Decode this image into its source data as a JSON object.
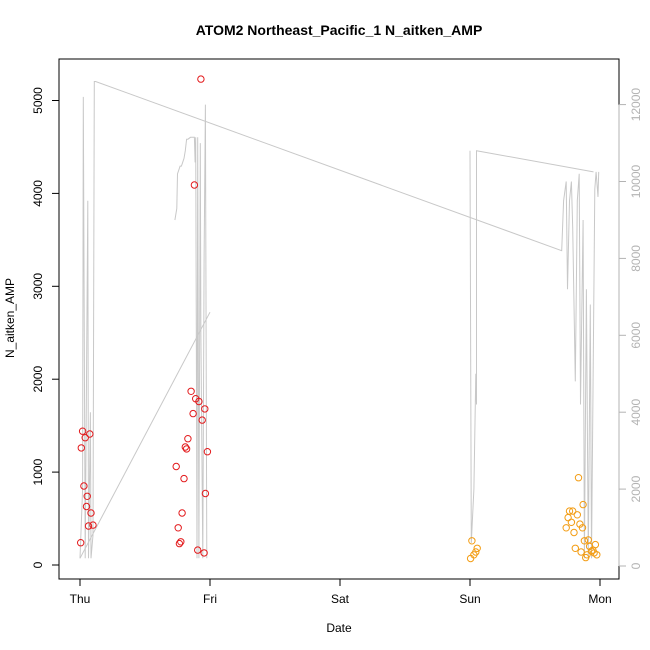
{
  "chart_data": {
    "type": "scatter",
    "title": "ATOM2 Northeast_Pacific_1 N_aitken_AMP",
    "xlabel": "Date",
    "ylabel": "N_aitken_AMP",
    "x_ticks": [
      "Thu",
      "Fri",
      "Sat",
      "Sun",
      "Mon"
    ],
    "x_range_days": [
      0,
      4
    ],
    "y_left": {
      "range": [
        0,
        5400
      ],
      "ticks": [
        0,
        1000,
        2000,
        3000,
        4000,
        5000
      ]
    },
    "y_right": {
      "range": [
        0,
        13000
      ],
      "ticks": [
        0,
        2000,
        4000,
        6000,
        8000,
        10000,
        12000
      ],
      "color": "#b3b3b3"
    },
    "grid": false,
    "colors": {
      "red": "#e31a1c",
      "orange": "#f39c12",
      "line": "#c8c8c8"
    },
    "series": [
      {
        "style": "points",
        "color": "red",
        "points": [
          [
            0.005,
            240
          ],
          [
            0.01,
            1260
          ],
          [
            0.02,
            1440
          ],
          [
            0.03,
            850
          ],
          [
            0.04,
            1370
          ],
          [
            0.05,
            630
          ],
          [
            0.055,
            740
          ],
          [
            0.065,
            420
          ],
          [
            0.075,
            1410
          ],
          [
            0.085,
            560
          ],
          [
            0.1,
            430
          ],
          [
            0.74,
            1060
          ],
          [
            0.755,
            400
          ],
          [
            0.765,
            230
          ],
          [
            0.775,
            250
          ],
          [
            0.785,
            560
          ],
          [
            0.8,
            930
          ],
          [
            0.81,
            1270
          ],
          [
            0.82,
            1250
          ],
          [
            0.83,
            1360
          ],
          [
            0.855,
            1870
          ],
          [
            0.87,
            1630
          ],
          [
            0.88,
            4090
          ],
          [
            0.89,
            1790
          ],
          [
            0.905,
            160
          ],
          [
            0.915,
            1760
          ],
          [
            0.93,
            5230
          ],
          [
            0.94,
            1560
          ],
          [
            0.955,
            130
          ],
          [
            0.96,
            1680
          ],
          [
            0.965,
            770
          ],
          [
            0.98,
            1220
          ]
        ]
      },
      {
        "style": "points",
        "color": "orange",
        "points": [
          [
            3.005,
            70
          ],
          [
            3.015,
            260
          ],
          [
            3.03,
            110
          ],
          [
            3.045,
            140
          ],
          [
            3.055,
            180
          ],
          [
            3.74,
            400
          ],
          [
            3.755,
            510
          ],
          [
            3.765,
            580
          ],
          [
            3.78,
            460
          ],
          [
            3.79,
            580
          ],
          [
            3.8,
            350
          ],
          [
            3.81,
            180
          ],
          [
            3.825,
            540
          ],
          [
            3.835,
            940
          ],
          [
            3.845,
            440
          ],
          [
            3.855,
            140
          ],
          [
            3.865,
            400
          ],
          [
            3.87,
            650
          ],
          [
            3.88,
            260
          ],
          [
            3.89,
            80
          ],
          [
            3.9,
            110
          ],
          [
            3.91,
            270
          ],
          [
            3.92,
            200
          ],
          [
            3.935,
            150
          ],
          [
            3.945,
            160
          ],
          [
            3.955,
            130
          ],
          [
            3.965,
            220
          ],
          [
            3.975,
            110
          ]
        ]
      },
      {
        "style": "line",
        "color": "line",
        "axis": "right",
        "points": [
          [
            0.0,
            200
          ],
          [
            0.02,
            2000
          ],
          [
            0.025,
            12200
          ],
          [
            0.04,
            200
          ],
          [
            0.06,
            9500
          ],
          [
            0.065,
            200
          ],
          [
            0.08,
            4000
          ],
          [
            0.085,
            200
          ],
          [
            0.1,
            800
          ],
          [
            0.11,
            12600
          ],
          [
            0.12,
            12600
          ],
          [
            3.705,
            8200
          ],
          [
            3.72,
            9500
          ],
          [
            3.74,
            10000
          ],
          [
            3.75,
            7200
          ],
          [
            3.765,
            9500
          ],
          [
            3.78,
            10000
          ],
          [
            3.79,
            8800
          ],
          [
            3.81,
            4800
          ],
          [
            3.825,
            9500
          ],
          [
            3.84,
            10200
          ],
          [
            3.85,
            4200
          ],
          [
            3.87,
            9000
          ],
          [
            3.88,
            200
          ],
          [
            3.895,
            7200
          ],
          [
            3.91,
            200
          ],
          [
            3.925,
            6800
          ],
          [
            3.935,
            200
          ],
          [
            3.96,
            9800
          ],
          [
            3.97,
            10250
          ],
          [
            3.985,
            9600
          ],
          [
            3.99,
            10250
          ]
        ]
      },
      {
        "style": "line",
        "color": "line",
        "axis": "right",
        "points": [
          [
            0.0,
            200
          ],
          [
            1.0,
            6600
          ]
        ]
      },
      {
        "style": "line",
        "color": "line",
        "axis": "right",
        "points": [
          [
            0.73,
            9000
          ],
          [
            0.745,
            9300
          ],
          [
            0.75,
            10200
          ],
          [
            0.76,
            10300
          ],
          [
            0.77,
            10400
          ],
          [
            0.78,
            10400
          ],
          [
            0.79,
            10500
          ],
          [
            0.8,
            10600
          ],
          [
            0.81,
            10800
          ],
          [
            0.82,
            11100
          ],
          [
            0.83,
            11100
          ],
          [
            0.85,
            11150
          ],
          [
            0.87,
            11150
          ],
          [
            0.88,
            11150
          ],
          [
            0.885,
            10500
          ],
          [
            0.89,
            11150
          ],
          [
            0.9,
            200
          ],
          [
            0.905,
            11150
          ],
          [
            0.915,
            200
          ],
          [
            0.925,
            11000
          ],
          [
            0.93,
            6000
          ],
          [
            0.945,
            200
          ],
          [
            0.955,
            8000
          ],
          [
            0.965,
            12000
          ],
          [
            0.975,
            200
          ]
        ]
      },
      {
        "style": "line",
        "color": "line",
        "axis": "right",
        "points": [
          [
            3.0,
            10800
          ],
          [
            3.01,
            600
          ],
          [
            3.03,
            2000
          ],
          [
            3.045,
            5000
          ],
          [
            3.05,
            4200
          ],
          [
            3.05,
            10800
          ],
          [
            3.95,
            10250
          ]
        ]
      }
    ]
  }
}
